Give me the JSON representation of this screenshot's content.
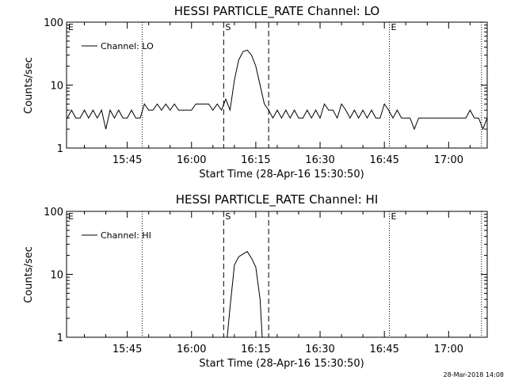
{
  "footer": {
    "timestamp": "28-Mar-2018 14:08"
  },
  "style": {
    "line_color": "#000000",
    "background_color": "#ffffff"
  },
  "chart_data": [
    {
      "type": "line",
      "title": "HESSI PARTICLE_RATE Channel: LO",
      "xlabel": "Start Time (28-Apr-16 15:30:50)",
      "ylabel": "Counts/sec",
      "yscale": "log",
      "ylim": [
        1,
        100
      ],
      "xlim": [
        "15:30:50",
        "17:09:00"
      ],
      "xticks": [
        "15:45",
        "16:00",
        "16:15",
        "16:30",
        "16:45",
        "17:00"
      ],
      "yticks": [
        "1",
        "10",
        "100"
      ],
      "legend": {
        "label": "Channel: LO",
        "placement": "top-left"
      },
      "series": [
        {
          "name": "Channel: LO",
          "x": [
            "15:31:00",
            "15:32:00",
            "15:33:00",
            "15:34:00",
            "15:35:00",
            "15:36:00",
            "15:37:00",
            "15:38:00",
            "15:39:00",
            "15:40:00",
            "15:41:00",
            "15:42:00",
            "15:43:00",
            "15:44:00",
            "15:45:00",
            "15:46:00",
            "15:47:00",
            "15:48:00",
            "15:49:00",
            "15:50:00",
            "15:51:00",
            "15:52:00",
            "15:53:00",
            "15:54:00",
            "15:55:00",
            "15:56:00",
            "15:57:00",
            "15:58:00",
            "15:59:00",
            "16:00:00",
            "16:01:00",
            "16:02:00",
            "16:03:00",
            "16:04:00",
            "16:05:00",
            "16:06:00",
            "16:07:00",
            "16:08:00",
            "16:09:00",
            "16:10:00",
            "16:11:00",
            "16:12:00",
            "16:13:00",
            "16:14:00",
            "16:15:00",
            "16:16:00",
            "16:17:00",
            "16:18:00",
            "16:19:00",
            "16:20:00",
            "16:21:00",
            "16:22:00",
            "16:23:00",
            "16:24:00",
            "16:25:00",
            "16:26:00",
            "16:27:00",
            "16:28:00",
            "16:29:00",
            "16:30:00",
            "16:31:00",
            "16:32:00",
            "16:33:00",
            "16:34:00",
            "16:35:00",
            "16:36:00",
            "16:37:00",
            "16:38:00",
            "16:39:00",
            "16:40:00",
            "16:41:00",
            "16:42:00",
            "16:43:00",
            "16:44:00",
            "16:45:00",
            "16:46:00",
            "16:47:00",
            "16:48:00",
            "16:49:00",
            "16:50:00",
            "16:51:00",
            "16:52:00",
            "16:53:00",
            "16:54:00",
            "16:55:00",
            "16:56:00",
            "16:57:00",
            "16:58:00",
            "16:59:00",
            "17:00:00",
            "17:01:00",
            "17:02:00",
            "17:03:00",
            "17:04:00",
            "17:05:00",
            "17:06:00",
            "17:07:00",
            "17:08:00",
            "17:09:00"
          ],
          "y": [
            3,
            4,
            3,
            3,
            4,
            3,
            4,
            3,
            4,
            2,
            4,
            3,
            4,
            3,
            3,
            4,
            3,
            3,
            5,
            4,
            4,
            5,
            4,
            5,
            4,
            5,
            4,
            4,
            4,
            4,
            5,
            5,
            5,
            5,
            4,
            5,
            4,
            6,
            4,
            12,
            25,
            34,
            36,
            30,
            20,
            10,
            5,
            4,
            3,
            4,
            3,
            4,
            3,
            4,
            3,
            3,
            4,
            3,
            4,
            3,
            5,
            4,
            4,
            3,
            5,
            4,
            3,
            4,
            3,
            4,
            3,
            4,
            3,
            3,
            5,
            4,
            3,
            4,
            3,
            3,
            3,
            2,
            3,
            3,
            3,
            3,
            3,
            3,
            3,
            3,
            3,
            3,
            3,
            3,
            4,
            3,
            3,
            2,
            3
          ]
        }
      ],
      "markers": {
        "dotted": [
          "15:48:30",
          "16:46:10",
          "17:07:40"
        ],
        "dashed": [
          "16:07:30",
          "16:18:00"
        ],
        "letters": [
          {
            "at": "15:30:50",
            "text": "E"
          },
          {
            "at": "16:07:30",
            "text": "S"
          },
          {
            "at": "16:46:10",
            "text": "E"
          }
        ]
      }
    },
    {
      "type": "line",
      "title": "HESSI PARTICLE_RATE Channel: HI",
      "xlabel": "Start Time (28-Apr-16 15:30:50)",
      "ylabel": "Counts/sec",
      "yscale": "log",
      "ylim": [
        1,
        100
      ],
      "xlim": [
        "15:30:50",
        "17:09:00"
      ],
      "xticks": [
        "15:45",
        "16:00",
        "16:15",
        "16:30",
        "16:45",
        "17:00"
      ],
      "yticks": [
        "1",
        "10",
        "100"
      ],
      "legend": {
        "label": "Channel: HI",
        "placement": "top-left"
      },
      "series": [
        {
          "name": "Channel: HI",
          "x": [
            "16:08:20",
            "16:09:00",
            "16:10:00",
            "16:11:00",
            "16:12:00",
            "16:13:00",
            "16:14:00",
            "16:15:00",
            "16:16:00",
            "16:16:30"
          ],
          "y": [
            1,
            3,
            14,
            19,
            21,
            23,
            18,
            13,
            4,
            1
          ]
        }
      ],
      "markers": {
        "dotted": [
          "15:48:30",
          "16:46:10",
          "17:07:40"
        ],
        "dashed": [
          "16:07:30",
          "16:18:00"
        ],
        "letters": [
          {
            "at": "15:30:50",
            "text": "E"
          },
          {
            "at": "16:07:30",
            "text": "S"
          },
          {
            "at": "16:46:10",
            "text": "E"
          }
        ]
      }
    }
  ]
}
